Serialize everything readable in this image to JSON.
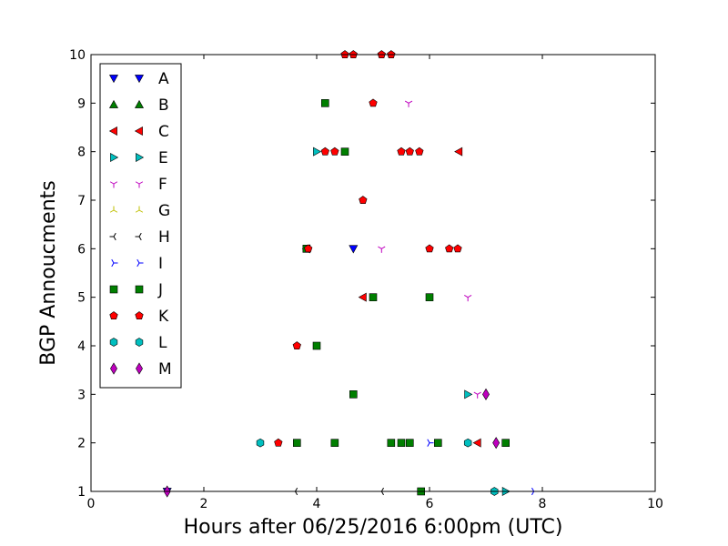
{
  "chart_data": {
    "type": "scatter",
    "xlabel": "Hours after 06/25/2016 6:00pm (UTC)",
    "ylabel": "BGP Annoucments",
    "xlim": [
      0,
      10
    ],
    "ylim": [
      1,
      10
    ],
    "x_ticks": [
      "0",
      "2",
      "4",
      "6",
      "8",
      "10"
    ],
    "y_ticks": [
      "1",
      "2",
      "3",
      "4",
      "5",
      "6",
      "7",
      "8",
      "9",
      "10"
    ],
    "grid": false,
    "legend_position": "top-left",
    "series": [
      {
        "name": "A",
        "marker": "triangle-down",
        "color": "#0000ff",
        "points": [
          [
            1.35,
            1
          ],
          [
            4.65,
            6
          ]
        ]
      },
      {
        "name": "B",
        "marker": "triangle-up",
        "color": "#007f00",
        "points": []
      },
      {
        "name": "C",
        "marker": "triangle-left",
        "color": "#ff0000",
        "points": [
          [
            3.82,
            6
          ],
          [
            4.82,
            5
          ],
          [
            6.52,
            8
          ],
          [
            6.85,
            2
          ]
        ]
      },
      {
        "name": "E",
        "marker": "triangle-right",
        "color": "#00bfbf",
        "points": [
          [
            4.0,
            8
          ],
          [
            6.68,
            3
          ],
          [
            7.35,
            1
          ]
        ]
      },
      {
        "name": "F",
        "marker": "tri-down",
        "color": "#bf00bf",
        "points": [
          [
            5.63,
            9
          ],
          [
            5.15,
            6
          ],
          [
            6.68,
            5
          ],
          [
            6.85,
            3
          ]
        ]
      },
      {
        "name": "G",
        "marker": "tri-up",
        "color": "#bfbf00",
        "points": []
      },
      {
        "name": "H",
        "marker": "tri-left",
        "color": "#000000",
        "points": [
          [
            3.62,
            1
          ],
          [
            5.15,
            1
          ]
        ]
      },
      {
        "name": "I",
        "marker": "tri-right",
        "color": "#0000ff",
        "points": [
          [
            6.0,
            2
          ],
          [
            7.85,
            1
          ]
        ]
      },
      {
        "name": "J",
        "marker": "square",
        "color": "#007f00",
        "points": [
          [
            4.15,
            9
          ],
          [
            4.5,
            8
          ],
          [
            3.82,
            6
          ],
          [
            5.0,
            5
          ],
          [
            6.0,
            5
          ],
          [
            4.0,
            4
          ],
          [
            4.65,
            3
          ],
          [
            3.65,
            2
          ],
          [
            4.32,
            2
          ],
          [
            5.32,
            2
          ],
          [
            5.5,
            2
          ],
          [
            5.65,
            2
          ],
          [
            6.15,
            2
          ],
          [
            7.35,
            2
          ],
          [
            5.85,
            1
          ]
        ]
      },
      {
        "name": "K",
        "marker": "pentagon",
        "color": "#ff0000",
        "points": [
          [
            4.5,
            10
          ],
          [
            4.65,
            10
          ],
          [
            5.15,
            10
          ],
          [
            5.32,
            10
          ],
          [
            5.0,
            9
          ],
          [
            4.15,
            8
          ],
          [
            4.32,
            8
          ],
          [
            5.5,
            8
          ],
          [
            5.65,
            8
          ],
          [
            5.82,
            8
          ],
          [
            4.82,
            7
          ],
          [
            3.85,
            6
          ],
          [
            6.0,
            6
          ],
          [
            6.35,
            6
          ],
          [
            6.5,
            6
          ],
          [
            3.65,
            4
          ],
          [
            3.32,
            2
          ]
        ]
      },
      {
        "name": "L",
        "marker": "hexagon",
        "color": "#00bfbf",
        "points": [
          [
            3.0,
            2
          ],
          [
            6.68,
            2
          ],
          [
            7.15,
            1
          ]
        ]
      },
      {
        "name": "M",
        "marker": "diamond",
        "color": "#bf00bf",
        "points": [
          [
            7.0,
            3
          ],
          [
            7.18,
            2
          ],
          [
            1.35,
            1
          ]
        ]
      }
    ]
  }
}
